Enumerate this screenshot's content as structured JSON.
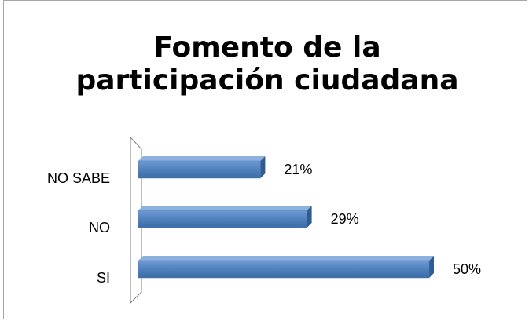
{
  "chart_data": {
    "type": "bar",
    "orientation": "horizontal",
    "title": "Fomento de la participación ciudadana",
    "categories": [
      "NO SABE",
      "NO",
      "SI"
    ],
    "values": [
      21,
      29,
      50
    ],
    "value_labels": [
      "21%",
      "29%",
      "50%"
    ],
    "color": "#4f81bd"
  }
}
